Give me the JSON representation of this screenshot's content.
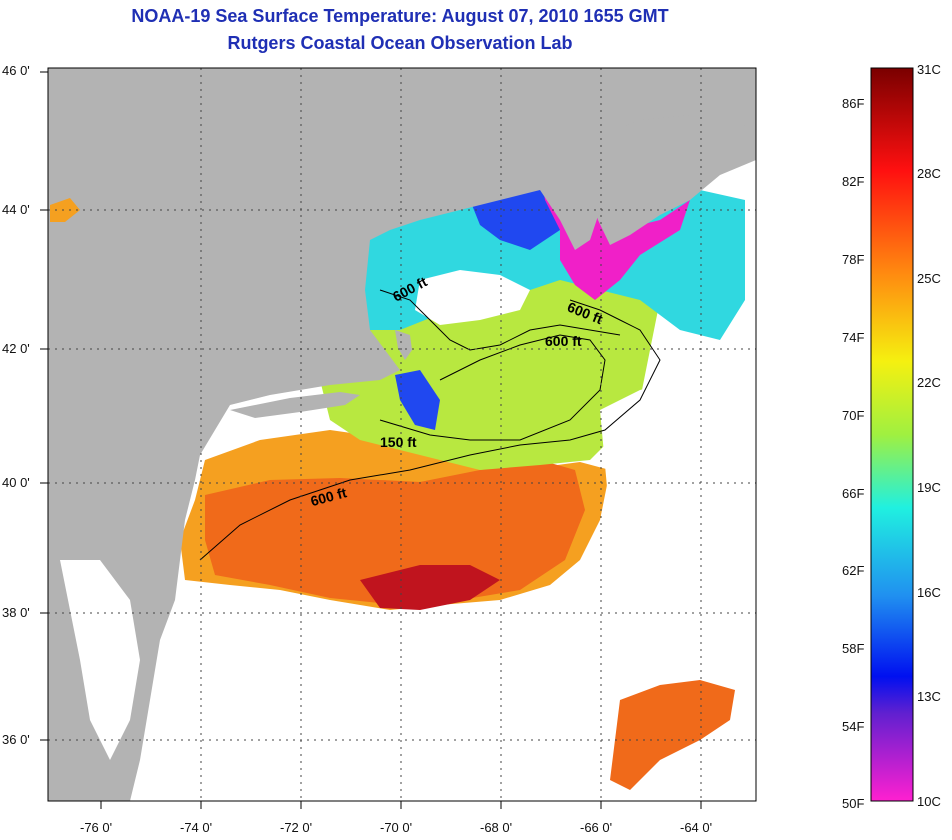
{
  "header": {
    "title": "NOAA-19 Sea Surface Temperature:  August 07, 2010 1655 GMT",
    "subtitle": "Rutgers Coastal Ocean Observation Lab"
  },
  "map": {
    "lon_ticks": [
      "-76 0'",
      "-74 0'",
      "-72 0'",
      "-70 0'",
      "-68 0'",
      "-66 0'",
      "-64 0'"
    ],
    "lat_ticks": [
      "46 0'",
      "44 0'",
      "42 0'",
      "40 0'",
      "38 0'",
      "36 0'"
    ],
    "contour_labels": [
      "600 ft",
      "600 ft",
      "600 ft",
      "150 ft",
      "600 ft"
    ],
    "colors": {
      "land": "#b3b3b3",
      "cloud": "#ffffff",
      "warm": "#f06a1a",
      "hot": "#c0141e",
      "mild": "#c8f040",
      "cool": "#30e0e0",
      "cold": "#2040f0",
      "coldest": "#f020c8"
    }
  },
  "colorbar": {
    "fahrenheit": [
      "86F",
      "82F",
      "78F",
      "74F",
      "70F",
      "66F",
      "62F",
      "58F",
      "54F",
      "50F"
    ],
    "celsius": [
      "31C",
      "28C",
      "25C",
      "22C",
      "19C",
      "16C",
      "13C",
      "10C"
    ]
  }
}
